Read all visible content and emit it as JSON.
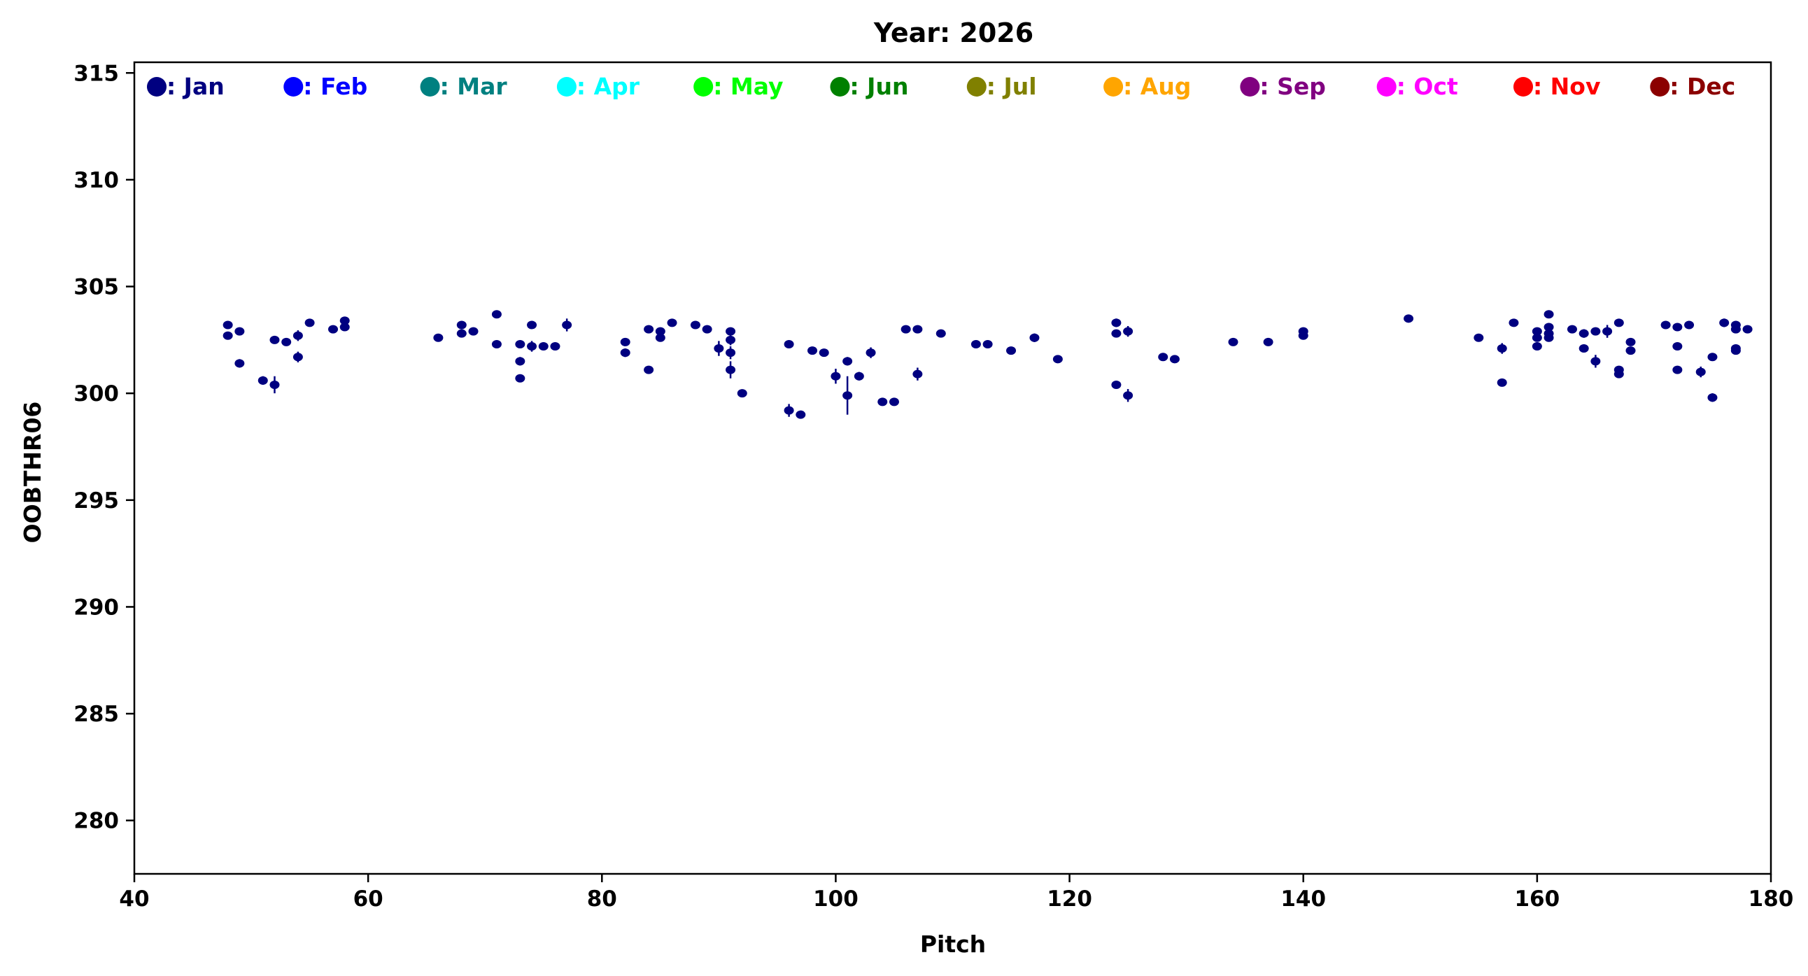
{
  "chart_data": {
    "type": "scatter",
    "title": "Year: 2026",
    "xlabel": "Pitch",
    "ylabel": "OOBTHR06",
    "xlim": [
      40,
      180
    ],
    "ylim": [
      277.5,
      315.5
    ],
    "xticks": [
      40,
      60,
      80,
      100,
      120,
      140,
      160,
      180
    ],
    "yticks": [
      280,
      285,
      290,
      295,
      300,
      305,
      310,
      315
    ],
    "grid": false,
    "legend_placement": "top",
    "legend": [
      {
        "label": ": Jan",
        "color": "#000080"
      },
      {
        "label": ": Feb",
        "color": "#0000ff"
      },
      {
        "label": ": Mar",
        "color": "#008080"
      },
      {
        "label": ": Apr",
        "color": "#00ffff"
      },
      {
        "label": ": May",
        "color": "#00ff00"
      },
      {
        "label": ": Jun",
        "color": "#008000"
      },
      {
        "label": ": Jul",
        "color": "#808000"
      },
      {
        "label": ": Aug",
        "color": "#ffa500"
      },
      {
        "label": ": Sep",
        "color": "#800080"
      },
      {
        "label": ": Oct",
        "color": "#ff00ff"
      },
      {
        "label": ": Nov",
        "color": "#ff0000"
      },
      {
        "label": ": Dec",
        "color": "#8b0000"
      }
    ],
    "series": [
      {
        "color": "#000080",
        "points": [
          [
            48,
            303.2,
            0.15
          ],
          [
            48,
            302.7,
            0.15
          ],
          [
            49,
            302.9,
            0.15
          ],
          [
            49,
            301.4,
            0.2
          ],
          [
            51,
            300.6,
            0.2
          ],
          [
            52,
            302.5,
            0.1
          ],
          [
            52,
            300.4,
            0.4
          ],
          [
            53,
            302.4,
            0.1
          ],
          [
            54,
            302.7,
            0.25
          ],
          [
            54,
            301.7,
            0.25
          ],
          [
            55,
            303.3,
            0.1
          ],
          [
            57,
            303.0,
            0.1
          ],
          [
            58,
            303.1,
            0.1
          ],
          [
            58,
            303.4,
            0.1
          ],
          [
            66,
            302.6,
            0.1
          ],
          [
            68,
            302.8,
            0.15
          ],
          [
            68,
            303.2,
            0.15
          ],
          [
            69,
            302.9,
            0.1
          ],
          [
            71,
            303.7,
            0.1
          ],
          [
            71,
            302.3,
            0.1
          ],
          [
            73,
            302.3,
            0.1
          ],
          [
            73,
            301.5,
            0.2
          ],
          [
            73,
            300.7,
            0.1
          ],
          [
            74,
            303.2,
            0.1
          ],
          [
            74,
            302.2,
            0.25
          ],
          [
            75,
            302.2,
            0.15
          ],
          [
            76,
            302.2,
            0.1
          ],
          [
            77,
            303.2,
            0.3
          ],
          [
            82,
            302.4,
            0.1
          ],
          [
            82,
            301.9,
            0.2
          ],
          [
            84,
            303.0,
            0.1
          ],
          [
            84,
            301.1,
            0.1
          ],
          [
            85,
            302.9,
            0.1
          ],
          [
            85,
            302.6,
            0.1
          ],
          [
            86,
            303.3,
            0.1
          ],
          [
            88,
            303.2,
            0.1
          ],
          [
            89,
            303.0,
            0.1
          ],
          [
            90,
            302.1,
            0.35
          ],
          [
            91,
            302.9,
            0.15
          ],
          [
            91,
            302.5,
            0.25
          ],
          [
            91,
            301.9,
            0.3
          ],
          [
            91,
            301.1,
            0.4
          ],
          [
            92,
            300.0,
            0.15
          ],
          [
            96,
            302.3,
            0.1
          ],
          [
            96,
            299.2,
            0.3
          ],
          [
            97,
            299.0,
            0.1
          ],
          [
            98,
            302.0,
            0.1
          ],
          [
            99,
            301.9,
            0.1
          ],
          [
            100,
            300.8,
            0.35
          ],
          [
            101,
            301.5,
            0.2
          ],
          [
            101,
            299.9,
            0.9
          ],
          [
            102,
            300.8,
            0.2
          ],
          [
            103,
            301.9,
            0.25
          ],
          [
            104,
            299.6,
            0.1
          ],
          [
            105,
            299.6,
            0.1
          ],
          [
            106,
            303.0,
            0.1
          ],
          [
            107,
            303.0,
            0.1
          ],
          [
            107,
            300.9,
            0.3
          ],
          [
            109,
            302.8,
            0.15
          ],
          [
            112,
            302.3,
            0.15
          ],
          [
            113,
            302.3,
            0.1
          ],
          [
            115,
            302.0,
            0.1
          ],
          [
            117,
            302.6,
            0.2
          ],
          [
            119,
            301.6,
            0.1
          ],
          [
            124,
            303.3,
            0.2
          ],
          [
            124,
            302.8,
            0.1
          ],
          [
            124,
            300.4,
            0.15
          ],
          [
            125,
            302.9,
            0.25
          ],
          [
            125,
            299.9,
            0.3
          ],
          [
            128,
            301.7,
            0.1
          ],
          [
            129,
            301.6,
            0.1
          ],
          [
            134,
            302.4,
            0.1
          ],
          [
            137,
            302.4,
            0.15
          ],
          [
            140,
            302.9,
            0.1
          ],
          [
            140,
            302.7,
            0.1
          ],
          [
            149,
            303.5,
            0.1
          ],
          [
            155,
            302.6,
            0.1
          ],
          [
            157,
            302.1,
            0.25
          ],
          [
            157,
            300.5,
            0.1
          ],
          [
            158,
            303.3,
            0.1
          ],
          [
            160,
            302.9,
            0.1
          ],
          [
            160,
            302.6,
            0.1
          ],
          [
            160,
            302.2,
            0.1
          ],
          [
            161,
            303.7,
            0.15
          ],
          [
            161,
            303.1,
            0.15
          ],
          [
            161,
            302.8,
            0.15
          ],
          [
            161,
            302.6,
            0.15
          ],
          [
            163,
            303.0,
            0.1
          ],
          [
            164,
            302.8,
            0.2
          ],
          [
            164,
            302.1,
            0.1
          ],
          [
            165,
            302.9,
            0.1
          ],
          [
            165,
            301.5,
            0.3
          ],
          [
            166,
            302.9,
            0.3
          ],
          [
            167,
            303.3,
            0.15
          ],
          [
            167,
            301.1,
            0.1
          ],
          [
            167,
            300.9,
            0.1
          ],
          [
            168,
            302.4,
            0.1
          ],
          [
            168,
            302.0,
            0.15
          ],
          [
            171,
            303.2,
            0.1
          ],
          [
            172,
            303.1,
            0.1
          ],
          [
            172,
            302.2,
            0.1
          ],
          [
            172,
            301.1,
            0.1
          ],
          [
            173,
            303.2,
            0.1
          ],
          [
            174,
            301.0,
            0.25
          ],
          [
            175,
            301.7,
            0.1
          ],
          [
            175,
            299.8,
            0.2
          ],
          [
            176,
            303.3,
            0.2
          ],
          [
            177,
            303.2,
            0.15
          ],
          [
            177,
            303.0,
            0.15
          ],
          [
            177,
            302.1,
            0.15
          ],
          [
            177,
            302.0,
            0.1
          ],
          [
            178,
            303.0,
            0.1
          ]
        ]
      }
    ]
  }
}
